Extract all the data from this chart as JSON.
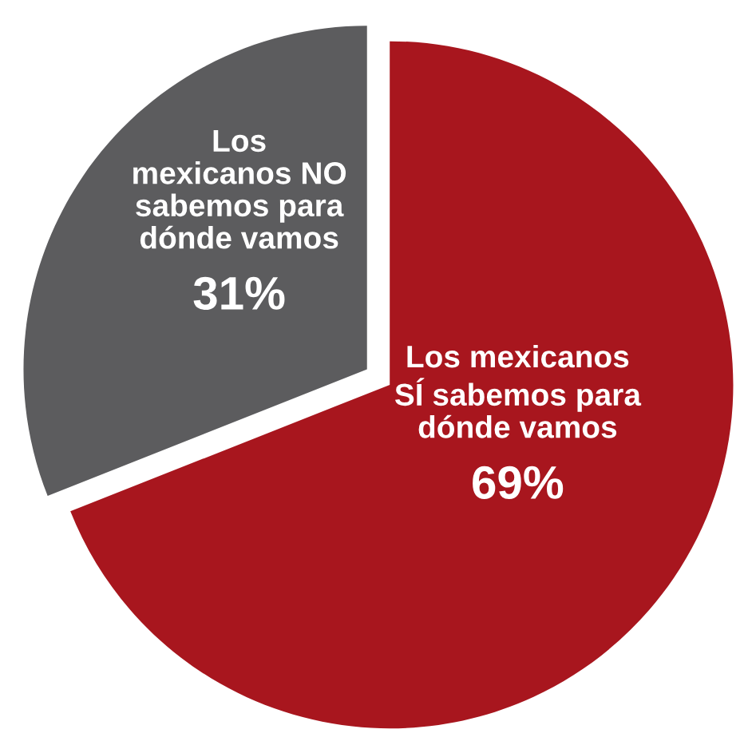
{
  "chart_data": {
    "type": "pie",
    "categories": [
      "Los mexicanos\nSÍ sabemos para\ndónde vamos",
      "Los\nmexicanos NO\nsabemos para\ndónde vamos"
    ],
    "values": [
      69,
      31
    ],
    "colors": [
      "#a8161e",
      "#5c5c5e"
    ],
    "value_labels": [
      "69%",
      "31%"
    ]
  }
}
